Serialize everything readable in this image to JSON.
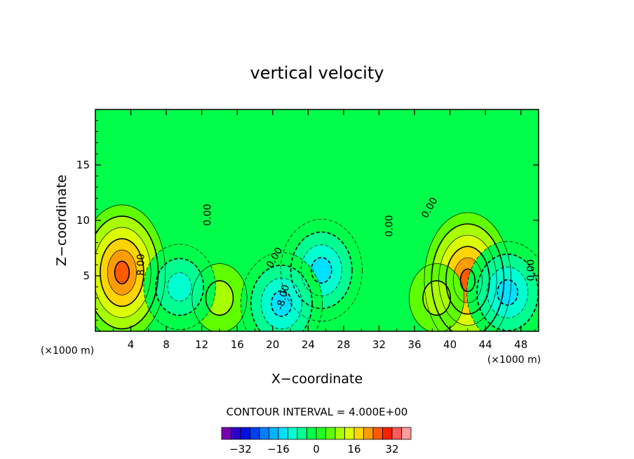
{
  "chart_data": {
    "type": "heatmap",
    "title": "vertical velocity",
    "xlabel": "X−coordinate",
    "ylabel": "Z−coordinate",
    "x_unit": "(×1000 m)",
    "y_unit": "(×1000 m)",
    "xlim": [
      0,
      50
    ],
    "ylim": [
      0,
      20
    ],
    "x_ticks": [
      "4",
      "8",
      "12",
      "16",
      "20",
      "24",
      "28",
      "32",
      "36",
      "40",
      "44",
      "48"
    ],
    "y_ticks": [
      "5",
      "10",
      "15"
    ],
    "contour_interval_text": "CONTOUR INTERVAL = 4.000E+00",
    "contour_labels": [
      "0.00",
      "8.00",
      "0.00",
      "-8.00",
      "0.00",
      "0.00",
      "0.00"
    ],
    "colorbar_ticks": [
      "−32",
      "−16",
      "0",
      "16",
      "32"
    ],
    "colorbar_levels": [
      -36,
      -32,
      -28,
      -24,
      -20,
      -16,
      -12,
      -8,
      -4,
      0,
      4,
      8,
      12,
      16,
      20,
      24,
      28,
      32,
      36
    ],
    "colorbar_colors": [
      "#7a00b4",
      "#2a00c8",
      "#0010e0",
      "#0040f0",
      "#0080ff",
      "#00b4ff",
      "#00e0ff",
      "#00ffd0",
      "#00ff90",
      "#00ff4a",
      "#20ff20",
      "#60ff00",
      "#a8ff00",
      "#dcff00",
      "#ffd400",
      "#ff9c00",
      "#ff5a00",
      "#ff2000",
      "#ff5a5a",
      "#ff9c9c"
    ],
    "features": [
      {
        "kind": "updraft",
        "x": 3.0,
        "z": 5.3,
        "peak": 24
      },
      {
        "kind": "updraft",
        "x": 42.0,
        "z": 4.6,
        "peak": 24
      },
      {
        "kind": "updraft",
        "x": 14.0,
        "z": 3.0,
        "peak": 8
      },
      {
        "kind": "updraft",
        "x": 38.5,
        "z": 3.0,
        "peak": 8
      },
      {
        "kind": "downdraft",
        "x": 25.5,
        "z": 5.5,
        "peak": -16
      },
      {
        "kind": "downdraft",
        "x": 21.0,
        "z": 2.5,
        "peak": -16
      },
      {
        "kind": "downdraft",
        "x": 46.5,
        "z": 3.5,
        "peak": -16
      },
      {
        "kind": "downdraft",
        "x": 9.5,
        "z": 4.0,
        "peak": -12
      }
    ]
  }
}
